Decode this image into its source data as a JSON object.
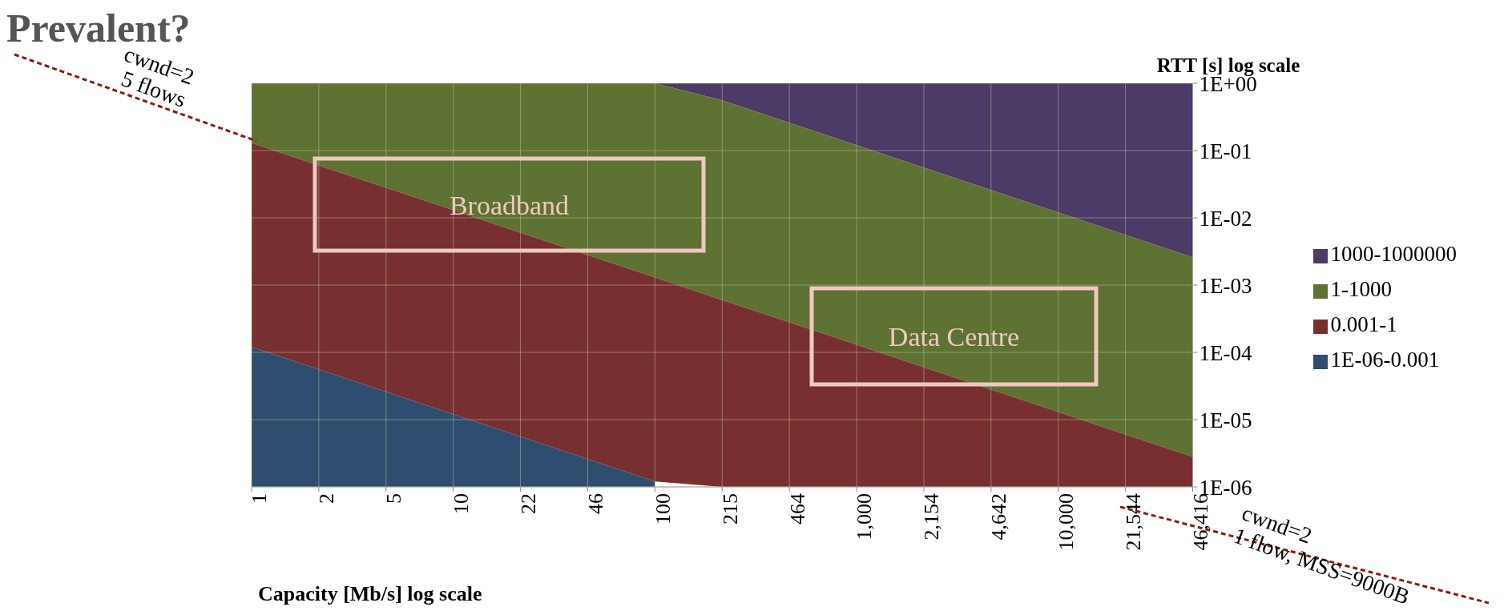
{
  "chart_data": {
    "type": "area",
    "title": "Prevalent?",
    "xlabel": "Capacity [Mb/s] log scale",
    "ylabel": "RTT [s] log scale",
    "categories": [
      "1",
      "2",
      "5",
      "10",
      "22",
      "46",
      "100",
      "215",
      "464",
      "1,000",
      "2,154",
      "4,642",
      "10,000",
      "21,544",
      "46,416"
    ],
    "series": [
      {
        "name": "1000-1000000",
        "color": "#4b3b66",
        "values": [
          1,
          1,
          1,
          1,
          1,
          1,
          1,
          1,
          1,
          1,
          1,
          1,
          1,
          1,
          1
        ]
      },
      {
        "name": "1-1000",
        "color": "#5e7233",
        "values": [
          1,
          1,
          1,
          1,
          1,
          1,
          1,
          0.56,
          0.26,
          0.12,
          0.056,
          0.026,
          0.012,
          0.0056,
          0.0026
        ]
      },
      {
        "name": "0.001-1",
        "color": "#77302f",
        "values": [
          0.13,
          0.06,
          0.028,
          0.013,
          0.006,
          0.0028,
          0.0013,
          0.0006,
          0.00028,
          0.00013,
          6e-05,
          2.8e-05,
          1.3e-05,
          6e-06,
          2.8e-06
        ]
      },
      {
        "name": "1E-06-0.001",
        "color": "#2f4d6e",
        "values": [
          0.00012,
          5.6e-05,
          2.6e-05,
          1.2e-05,
          5.6e-06,
          2.6e-06,
          1.2e-06,
          null,
          null,
          null,
          null,
          null,
          null,
          null,
          null
        ]
      }
    ],
    "log": "y",
    "ylim": [
      1e-06,
      1
    ],
    "yticks": [
      {
        "value": 1e-06,
        "label": "1E-06"
      },
      {
        "value": 1e-05,
        "label": "1E-05"
      },
      {
        "value": 0.0001,
        "label": "1E-04"
      },
      {
        "value": 0.001,
        "label": "1E-03"
      },
      {
        "value": 0.01,
        "label": "1E-02"
      },
      {
        "value": 0.1,
        "label": "1E-01"
      },
      {
        "value": 1,
        "label": "1E+00"
      }
    ],
    "grid": true,
    "legend": "right",
    "annotations": [
      "Broadband",
      "Data Centre",
      "cwnd=2\n5 flows",
      "cwnd=2\n1 flow, MSS=9000B"
    ]
  }
}
